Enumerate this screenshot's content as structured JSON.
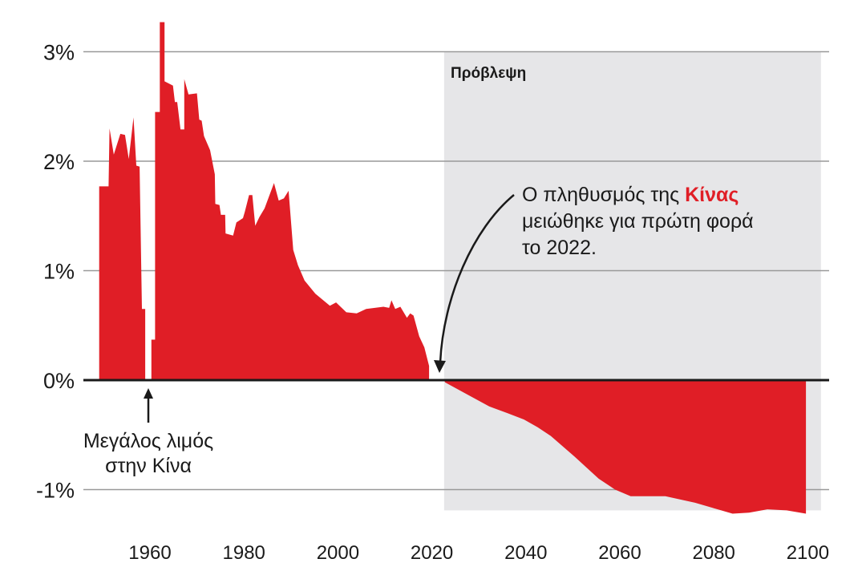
{
  "chart_data": {
    "type": "area",
    "title": "",
    "xlabel": "",
    "ylabel": "",
    "xlim": [
      1940,
      2105
    ],
    "ylim": [
      -1.25,
      3.3
    ],
    "x_ticks": [
      1960,
      1980,
      2000,
      2020,
      2040,
      2060,
      2080,
      2100
    ],
    "x_tick_labels": [
      "1960",
      "1980",
      "2000",
      "2020",
      "2040",
      "2060",
      "2080",
      "2100"
    ],
    "y_ticks": [
      -1,
      0,
      1,
      2,
      3
    ],
    "y_tick_labels": [
      "-1%",
      "0%",
      "1%",
      "2%",
      "3%"
    ],
    "grid": true,
    "colors": {
      "series": "#e01e26",
      "forecast_bg": "#e6e6e8",
      "grid": "#999999",
      "zero": "#1a1a1a",
      "highlight": "#e01e26"
    },
    "forecast": {
      "label": "Πρόβλεψη",
      "start": 2022.6,
      "end": 2102.8
    },
    "series": [
      {
        "name": "historical",
        "points": [
          [
            1949.2,
            0
          ],
          [
            1949.2,
            1.77
          ],
          [
            1951.2,
            1.77
          ],
          [
            1951.4,
            2.3
          ],
          [
            1952.3,
            2.06
          ],
          [
            1953.7,
            2.25
          ],
          [
            1954.7,
            2.24
          ],
          [
            1955.5,
            2.02
          ],
          [
            1956.5,
            2.4
          ],
          [
            1957.1,
            1.96
          ],
          [
            1957.8,
            1.95
          ],
          [
            1958.3,
            0.65
          ],
          [
            1959.0,
            0.65
          ],
          [
            1959.0,
            0
          ],
          [
            1960.3,
            0
          ],
          [
            1960.3,
            0.37
          ],
          [
            1961.1,
            0.37
          ],
          [
            1961.1,
            2.45
          ],
          [
            1962.1,
            2.45
          ],
          [
            1962.1,
            3.27
          ],
          [
            1963.1,
            3.27
          ],
          [
            1963.1,
            2.73
          ],
          [
            1964.9,
            2.69
          ],
          [
            1965.3,
            2.54
          ],
          [
            1965.8,
            2.54
          ],
          [
            1966.5,
            2.29
          ],
          [
            1967.3,
            2.29
          ],
          [
            1967.3,
            2.75
          ],
          [
            1968.2,
            2.61
          ],
          [
            1970.0,
            2.62
          ],
          [
            1970.5,
            2.38
          ],
          [
            1971.0,
            2.37
          ],
          [
            1971.5,
            2.23
          ],
          [
            1972.8,
            2.1
          ],
          [
            1973.8,
            1.88
          ],
          [
            1973.9,
            1.61
          ],
          [
            1974.8,
            1.6
          ],
          [
            1975.1,
            1.51
          ],
          [
            1976.0,
            1.51
          ],
          [
            1976.1,
            1.34
          ],
          [
            1977.7,
            1.32
          ],
          [
            1978.4,
            1.44
          ],
          [
            1979.8,
            1.48
          ],
          [
            1980.2,
            1.54
          ],
          [
            1981.1,
            1.69
          ],
          [
            1981.8,
            1.69
          ],
          [
            1982.4,
            1.41
          ],
          [
            1983.3,
            1.49
          ],
          [
            1984.4,
            1.57
          ],
          [
            1986.4,
            1.8
          ],
          [
            1987.4,
            1.64
          ],
          [
            1988.5,
            1.66
          ],
          [
            1989.5,
            1.73
          ],
          [
            1990.5,
            1.19
          ],
          [
            1991.5,
            1.05
          ],
          [
            1992.9,
            0.91
          ],
          [
            1995.2,
            0.79
          ],
          [
            1998.3,
            0.68
          ],
          [
            1999.6,
            0.71
          ],
          [
            2001.8,
            0.62
          ],
          [
            2004.0,
            0.61
          ],
          [
            2006.0,
            0.65
          ],
          [
            2009.7,
            0.67
          ],
          [
            2010.9,
            0.66
          ],
          [
            2011.4,
            0.73
          ],
          [
            2012.2,
            0.65
          ],
          [
            2013.3,
            0.67
          ],
          [
            2014.7,
            0.57
          ],
          [
            2015.4,
            0.61
          ],
          [
            2016.1,
            0.59
          ],
          [
            2017.3,
            0.4
          ],
          [
            2018.4,
            0.3
          ],
          [
            2019.4,
            0.13
          ],
          [
            2019.4,
            0
          ]
        ]
      },
      {
        "name": "forecast",
        "points": [
          [
            2022.6,
            0
          ],
          [
            2022.8,
            -0.02
          ],
          [
            2027.5,
            -0.13
          ],
          [
            2032.2,
            -0.24
          ],
          [
            2036,
            -0.3
          ],
          [
            2039.6,
            -0.36
          ],
          [
            2042.5,
            -0.43
          ],
          [
            2045.3,
            -0.51
          ],
          [
            2050.4,
            -0.7
          ],
          [
            2055.5,
            -0.9
          ],
          [
            2059,
            -1.0
          ],
          [
            2062.3,
            -1.06
          ],
          [
            2069.7,
            -1.06
          ],
          [
            2076,
            -1.12
          ],
          [
            2080,
            -1.17
          ],
          [
            2084,
            -1.22
          ],
          [
            2087.5,
            -1.21
          ],
          [
            2091.4,
            -1.18
          ],
          [
            2095.5,
            -1.19
          ],
          [
            2099.6,
            -1.22
          ],
          [
            2099.6,
            0
          ]
        ]
      }
    ],
    "annotations": [
      {
        "id": "famine",
        "lines": [
          "Μεγάλος λιμός",
          "στην Κίνα"
        ],
        "x": 1960,
        "y": 0
      },
      {
        "id": "decline",
        "line1_prefix": "Ο πληθυσμός της ",
        "line1_highlight": "Κίνας",
        "line2": "μειώθηκε για πρώτη φορά",
        "line3": "το 2022.",
        "x": 2022,
        "y": 0
      }
    ]
  }
}
